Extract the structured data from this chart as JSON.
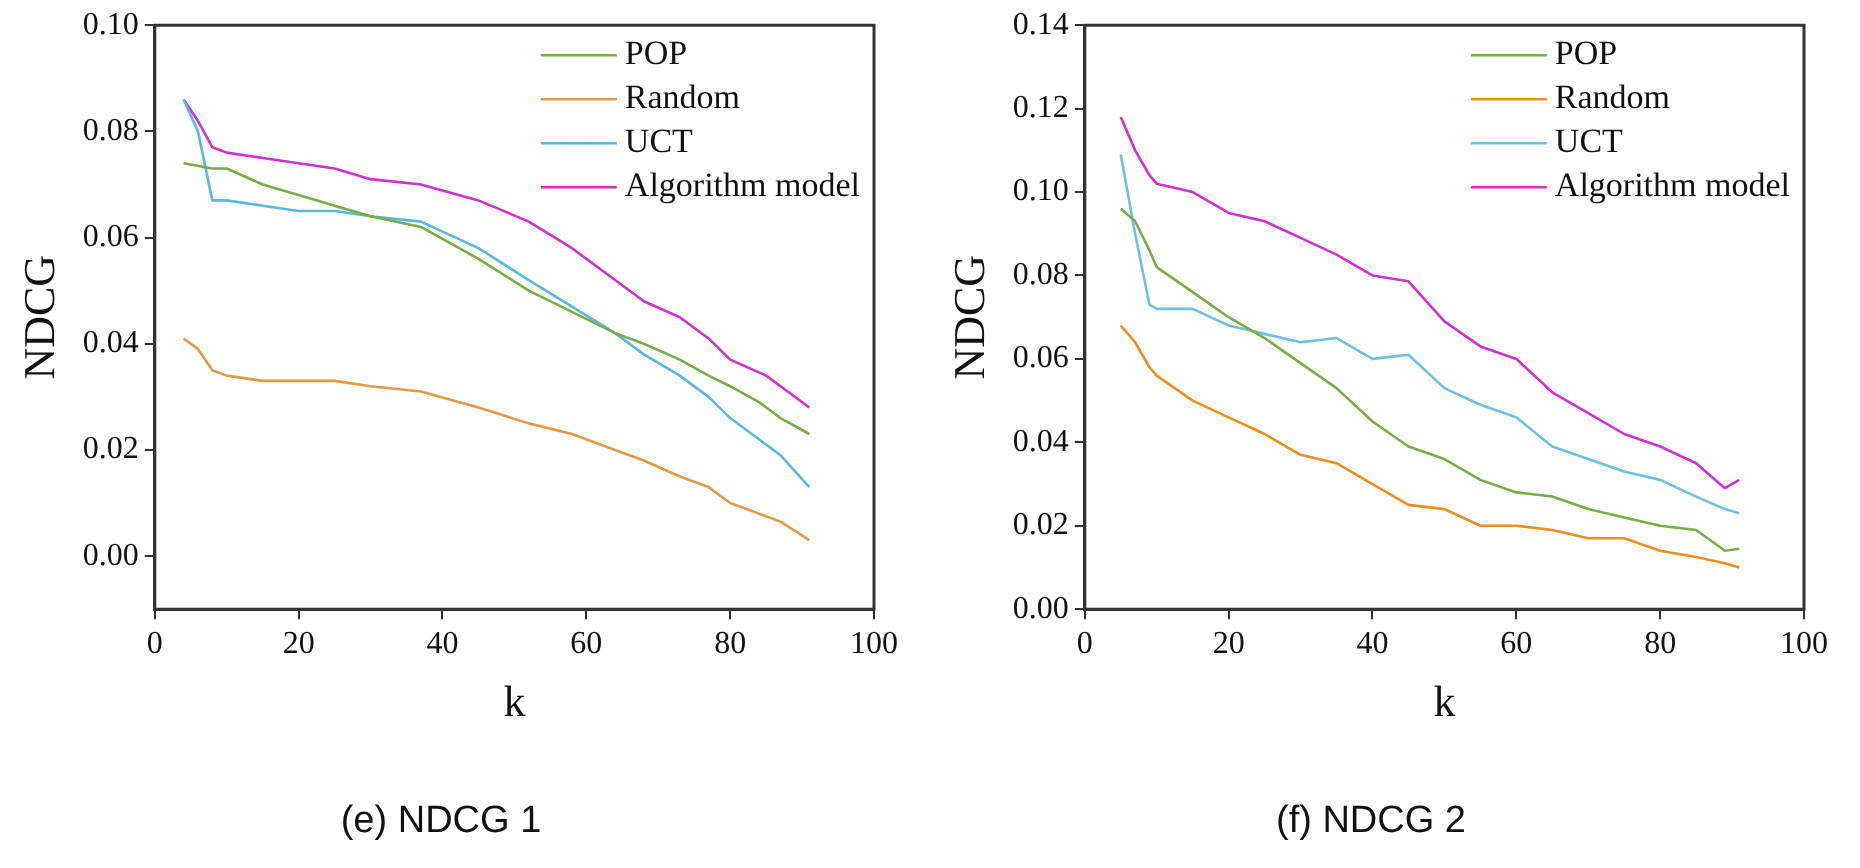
{
  "chart_data": [
    {
      "type": "line",
      "title": "(e) NDCG 1",
      "xlabel": "k",
      "ylabel": "NDCG",
      "xlim": [
        0,
        100
      ],
      "xticks": [
        0,
        20,
        40,
        60,
        80,
        100
      ],
      "ylim": [
        -0.01,
        0.1
      ],
      "yticks": [
        {
          "value": 0,
          "label": "0.00"
        },
        {
          "value": 0.02,
          "label": "0.02"
        },
        {
          "value": 0.04,
          "label": "0.04"
        },
        {
          "value": 0.06,
          "label": "0.06"
        },
        {
          "value": 0.08,
          "label": "0.08"
        },
        {
          "value": 0.1,
          "label": "0.10"
        }
      ],
      "grid": false,
      "legend": "top right",
      "marker": "none",
      "line_style": "solid",
      "series": [
        {
          "name": "POP",
          "color": "#77ac48",
          "x": [
            4,
            8,
            10,
            15,
            20,
            25,
            30,
            37,
            45,
            52,
            58,
            64,
            68,
            73,
            77,
            80,
            84,
            87,
            91
          ],
          "values": [
            0.074,
            0.073,
            0.073,
            0.07,
            0.068,
            0.066,
            0.064,
            0.062,
            0.056,
            0.05,
            0.046,
            0.042,
            0.04,
            0.037,
            0.034,
            0.032,
            0.029,
            0.026,
            0.023
          ]
        },
        {
          "name": "Random",
          "color": "#e09a45",
          "x": [
            4,
            6,
            8,
            10,
            15,
            20,
            25,
            30,
            37,
            45,
            52,
            58,
            64,
            68,
            73,
            77,
            80,
            84,
            87,
            91
          ],
          "values": [
            0.041,
            0.039,
            0.035,
            0.034,
            0.033,
            0.033,
            0.033,
            0.032,
            0.031,
            0.028,
            0.025,
            0.023,
            0.02,
            0.018,
            0.015,
            0.013,
            0.01,
            0.008,
            0.0065,
            0.003
          ]
        },
        {
          "name": "UCT",
          "color": "#5bb8dc",
          "x": [
            4,
            6,
            8,
            10,
            15,
            20,
            25,
            30,
            37,
            45,
            52,
            58,
            64,
            68,
            73,
            77,
            80,
            84,
            87,
            91
          ],
          "values": [
            0.086,
            0.08,
            0.067,
            0.067,
            0.066,
            0.065,
            0.065,
            0.064,
            0.063,
            0.058,
            0.052,
            0.047,
            0.042,
            0.038,
            0.034,
            0.03,
            0.026,
            0.022,
            0.019,
            0.013
          ]
        },
        {
          "name": "Algorithm model",
          "color": "#cc33cc",
          "x": [
            4,
            6,
            8,
            10,
            15,
            20,
            25,
            30,
            37,
            45,
            52,
            58,
            64,
            68,
            73,
            77,
            80,
            85,
            88,
            91
          ],
          "values": [
            0.086,
            0.082,
            0.077,
            0.076,
            0.075,
            0.074,
            0.073,
            0.071,
            0.07,
            0.067,
            0.063,
            0.058,
            0.052,
            0.048,
            0.045,
            0.041,
            0.037,
            0.034,
            0.031,
            0.028
          ]
        }
      ]
    },
    {
      "type": "line",
      "title": "(f) NDCG 2",
      "xlabel": "k",
      "ylabel": "NDCG",
      "xlim": [
        0,
        100
      ],
      "xticks": [
        0,
        20,
        40,
        60,
        80,
        100
      ],
      "ylim": [
        0,
        0.14
      ],
      "yticks": [
        {
          "value": 0,
          "label": "0.00"
        },
        {
          "value": 0.02,
          "label": "0.02"
        },
        {
          "value": 0.04,
          "label": "0.04"
        },
        {
          "value": 0.06,
          "label": "0.06"
        },
        {
          "value": 0.08,
          "label": "0.08"
        },
        {
          "value": 0.1,
          "label": "0.10"
        },
        {
          "value": 0.12,
          "label": "0.12"
        },
        {
          "value": 0.14,
          "label": "0.14"
        }
      ],
      "grid": false,
      "legend": "top right",
      "marker": "none",
      "line_style": "solid",
      "x": [
        5,
        7,
        9,
        10,
        15,
        20,
        25,
        30,
        35,
        40,
        45,
        50,
        55,
        60,
        65,
        70,
        75,
        80,
        85,
        89,
        91
      ],
      "series": [
        {
          "name": "POP",
          "color": "#77ac48",
          "values": [
            0.096,
            0.093,
            0.086,
            0.082,
            0.076,
            0.07,
            0.065,
            0.059,
            0.053,
            0.045,
            0.039,
            0.036,
            0.031,
            0.028,
            0.027,
            0.024,
            0.022,
            0.02,
            0.019,
            0.014,
            0.0145
          ]
        },
        {
          "name": "Random",
          "color": "#e8901f",
          "values": [
            0.068,
            0.064,
            0.058,
            0.056,
            0.05,
            0.046,
            0.042,
            0.037,
            0.035,
            0.03,
            0.025,
            0.024,
            0.02,
            0.02,
            0.019,
            0.017,
            0.017,
            0.014,
            0.0125,
            0.011,
            0.01
          ]
        },
        {
          "name": "UCT",
          "color": "#6ec0e0",
          "values": [
            0.109,
            0.09,
            0.073,
            0.072,
            0.072,
            0.068,
            0.066,
            0.064,
            0.065,
            0.06,
            0.061,
            0.053,
            0.049,
            0.046,
            0.039,
            0.036,
            0.033,
            0.031,
            0.027,
            0.024,
            0.023
          ]
        },
        {
          "name": "Algorithm model",
          "color": "#cc33cc",
          "values": [
            0.118,
            0.11,
            0.104,
            0.102,
            0.1,
            0.095,
            0.093,
            0.089,
            0.085,
            0.08,
            0.0786,
            0.069,
            0.063,
            0.06,
            0.052,
            0.047,
            0.042,
            0.039,
            0.035,
            0.029,
            0.031
          ]
        }
      ]
    }
  ]
}
